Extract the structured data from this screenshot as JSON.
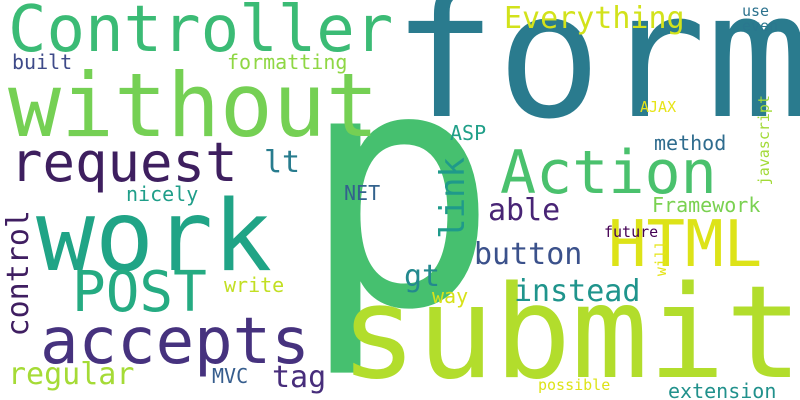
{
  "words": [
    {
      "text": "form",
      "color": "#2a7b8e"
    },
    {
      "text": "p",
      "color": "#46c06f"
    },
    {
      "text": "submit",
      "color": "#b2dd2c"
    },
    {
      "text": "without",
      "color": "#75d054"
    },
    {
      "text": "Controller",
      "color": "#3bbb75"
    },
    {
      "text": "work",
      "color": "#20a486"
    },
    {
      "text": "request",
      "color": "#3e1f5f"
    },
    {
      "text": "accepts",
      "color": "#46327e"
    },
    {
      "text": "Action",
      "color": "#4ac16d"
    },
    {
      "text": "HTML",
      "color": "#dde318"
    },
    {
      "text": "POST",
      "color": "#25ab82"
    },
    {
      "text": "button",
      "color": "#3b518b"
    },
    {
      "text": "Everything",
      "color": "#d2e21b"
    },
    {
      "text": "link",
      "color": "#1f9a8a"
    },
    {
      "text": "able",
      "color": "#482475"
    },
    {
      "text": "instead",
      "color": "#1f948c"
    },
    {
      "text": "regular",
      "color": "#a5db36"
    },
    {
      "text": "tag",
      "color": "#472d7b"
    },
    {
      "text": "control",
      "color": "#3f1e61"
    },
    {
      "text": "lt",
      "color": "#287c8e"
    },
    {
      "text": "gt",
      "color": "#23898e"
    },
    {
      "text": "formatting",
      "color": "#8fd744"
    },
    {
      "text": "built",
      "color": "#3e4a89"
    },
    {
      "text": "ASP",
      "color": "#1f9f88"
    },
    {
      "text": "method",
      "color": "#2f6c8e"
    },
    {
      "text": "nicely",
      "color": "#1f9e89"
    },
    {
      "text": "NET",
      "color": "#33628d"
    },
    {
      "text": "Framework",
      "color": "#7ad151"
    },
    {
      "text": "write",
      "color": "#c2df23"
    },
    {
      "text": "way",
      "color": "#d8e219"
    },
    {
      "text": "MVC",
      "color": "#365d8d"
    },
    {
      "text": "future",
      "color": "#440154"
    },
    {
      "text": "will",
      "color": "#e5e419"
    },
    {
      "text": "javascript",
      "color": "#a2da37"
    },
    {
      "text": "AJAX",
      "color": "#e7e419"
    },
    {
      "text": "use",
      "color": "#2c728e"
    },
    {
      "text": "even",
      "color": "#2a778e"
    },
    {
      "text": "possible",
      "color": "#dde318"
    },
    {
      "text": "extension",
      "color": "#21918c"
    }
  ]
}
